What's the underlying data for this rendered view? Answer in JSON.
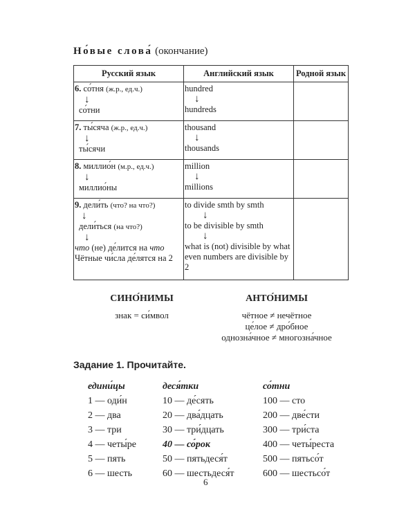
{
  "title": {
    "bold": "Но́вые слова́",
    "rest": "(окончание)"
  },
  "table": {
    "headers": [
      "Русский язык",
      "Английский язык",
      "Родной язык"
    ],
    "arrow": "↓",
    "rows": [
      {
        "ru": [
          {
            "num": "6.",
            "word": "со́тня",
            "note": "(ж.р., ед.ч.)"
          },
          {
            "word": "со́тни"
          }
        ],
        "en": [
          "hundred",
          "hundreds"
        ]
      },
      {
        "ru": [
          {
            "num": "7.",
            "word": "ты́сяча",
            "note": "(ж.р., ед.ч.)"
          },
          {
            "word": "ты́сячи"
          }
        ],
        "en": [
          "thousand",
          "thousands"
        ]
      },
      {
        "ru": [
          {
            "num": "8.",
            "word": "миллио́н",
            "note": "(м.р., ед.ч.)"
          },
          {
            "word": "миллио́ны"
          }
        ],
        "en": [
          "million",
          "millions"
        ]
      },
      {
        "ru": [
          {
            "num": "9.",
            "word": "дели́ть",
            "note": "(что? на что?)"
          },
          {
            "word": "дели́ться",
            "note": "(на что?)"
          }
        ],
        "ru_extra": {
          "it1": "что",
          "mid": " (не) де́лится на ",
          "it2": "что",
          "example": "Чётные чи́сла де́лятся на 2"
        },
        "en": [
          "to divide smth by smth",
          "to be divisible by smth",
          "what is (not) divisible by what",
          "even numbers are divisible by 2"
        ]
      }
    ]
  },
  "synonyms": {
    "heading": "СИНО́НИМЫ",
    "items": [
      "знак = си́мвол"
    ]
  },
  "antonyms": {
    "heading": "АНТО́НИМЫ",
    "items": [
      "чётное ≠ нечётное",
      "це́лое ≠ дро́бное",
      "однозна́чное ≠ многозна́чное"
    ]
  },
  "task": "Задание 1. Прочитайте.",
  "columns": [
    {
      "heading": "едини́цы",
      "items": [
        "1 — оди́н",
        "2 — два",
        "3 — три",
        "4 — четы́ре",
        "5 — пять",
        "6 — шесть"
      ]
    },
    {
      "heading": "деся́тки",
      "items": [
        "10 — де́сять",
        "20 — два́дцать",
        "30 — три́дцать",
        "40 — со́рок",
        "50 — пятьдеся́т",
        "60 — шестьдеся́т"
      ]
    },
    {
      "heading": "со́тни",
      "items": [
        "100 — сто",
        "200 — две́сти",
        "300 — три́ста",
        "400 — четы́реста",
        "500 — пятьсо́т",
        "600 — шестьсо́т"
      ]
    }
  ],
  "page_number": "6"
}
